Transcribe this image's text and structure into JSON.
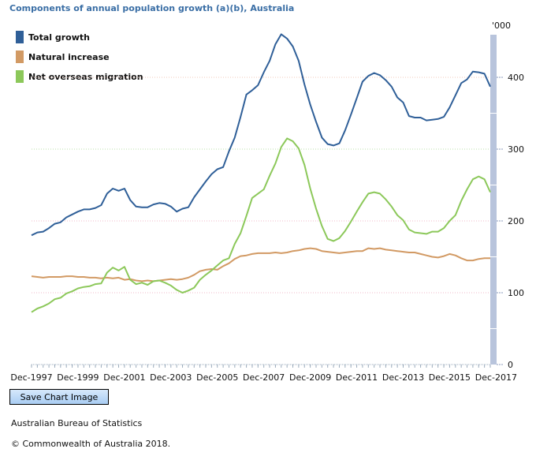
{
  "chart_data": {
    "type": "line",
    "title": "Components of annual population growth (a)(b), Australia",
    "ylabel": "'000",
    "ylim": [
      0,
      400
    ],
    "yticks": [
      "0",
      "100",
      "200",
      "300",
      "400"
    ],
    "x_start": "Dec-1997",
    "x_end": "Dec-2017",
    "frequency": "quarterly",
    "xtick_labels": [
      "Dec-1997",
      "Dec-1999",
      "Dec-2001",
      "Dec-2003",
      "Dec-2005",
      "Dec-2007",
      "Dec-2009",
      "Dec-2011",
      "Dec-2013",
      "Dec-2015",
      "Dec-2017"
    ],
    "legend_position": "top-left",
    "grid": true,
    "series": [
      {
        "name": "Total growth",
        "color": "#2f5f98",
        "values": [
          180,
          184,
          185,
          190,
          196,
          198,
          205,
          209,
          213,
          216,
          216,
          218,
          222,
          238,
          245,
          242,
          245,
          229,
          220,
          219,
          219,
          223,
          225,
          224,
          220,
          213,
          217,
          219,
          233,
          244,
          255,
          265,
          272,
          275,
          297,
          316,
          345,
          376,
          382,
          389,
          407,
          423,
          446,
          460,
          454,
          443,
          423,
          390,
          362,
          338,
          316,
          307,
          305,
          308,
          326,
          348,
          371,
          394,
          402,
          406,
          403,
          396,
          387,
          372,
          365,
          346,
          344,
          344,
          340,
          341,
          342,
          345,
          358,
          375,
          392,
          397,
          408,
          407,
          405,
          387
        ]
      },
      {
        "name": "Natural increase",
        "color": "#d29a64",
        "values": [
          123,
          122,
          121,
          122,
          122,
          122,
          123,
          123,
          122,
          122,
          121,
          121,
          120,
          121,
          120,
          121,
          118,
          119,
          117,
          116,
          117,
          116,
          117,
          118,
          119,
          118,
          119,
          121,
          125,
          130,
          132,
          133,
          132,
          137,
          141,
          147,
          151,
          152,
          154,
          155,
          155,
          155,
          156,
          155,
          156,
          158,
          159,
          161,
          162,
          161,
          158,
          157,
          156,
          155,
          156,
          157,
          158,
          158,
          162,
          161,
          162,
          160,
          159,
          158,
          157,
          156,
          156,
          154,
          152,
          150,
          149,
          151,
          154,
          152,
          148,
          145,
          145,
          147,
          148,
          148
        ]
      },
      {
        "name": "Net overseas migration",
        "color": "#8cc85a",
        "values": [
          73,
          78,
          81,
          85,
          91,
          93,
          99,
          102,
          106,
          108,
          109,
          112,
          113,
          128,
          135,
          131,
          136,
          118,
          112,
          114,
          111,
          116,
          117,
          114,
          110,
          104,
          100,
          103,
          107,
          118,
          125,
          131,
          138,
          145,
          148,
          168,
          183,
          207,
          232,
          238,
          244,
          263,
          280,
          303,
          315,
          311,
          301,
          278,
          245,
          217,
          193,
          175,
          172,
          176,
          186,
          199,
          213,
          226,
          238,
          240,
          238,
          230,
          220,
          208,
          201,
          188,
          184,
          183,
          182,
          185,
          185,
          190,
          200,
          208,
          228,
          244,
          258,
          262,
          258,
          240
        ]
      }
    ]
  },
  "button": {
    "save_label": "Save Chart Image"
  },
  "footer": {
    "source": "Australian Bureau of Statistics",
    "copyright": "© Commonwealth of Australia 2018."
  }
}
